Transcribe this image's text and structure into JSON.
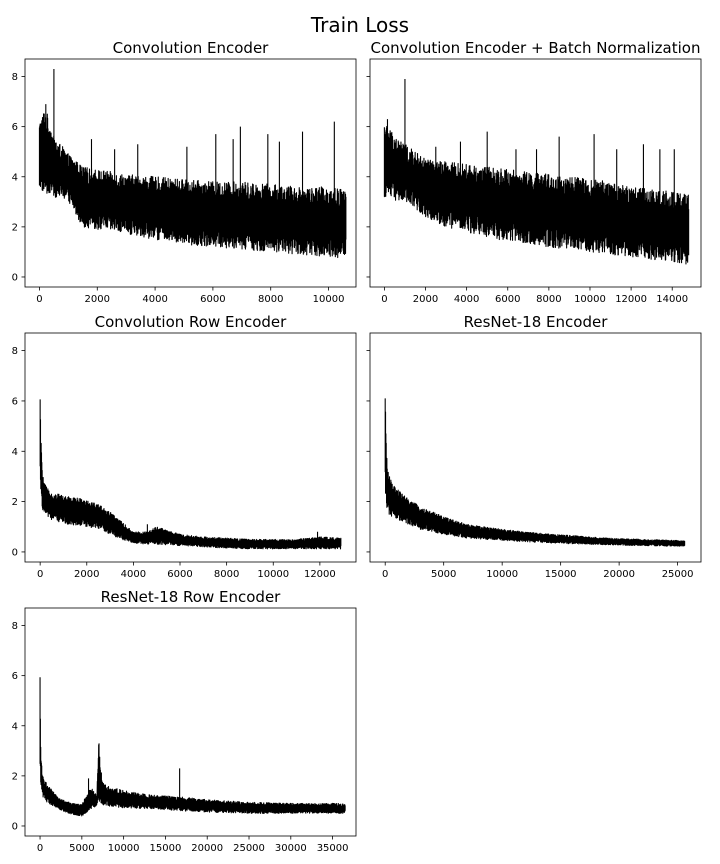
{
  "figure": {
    "title": "Train Loss"
  },
  "chart_data": [
    {
      "type": "line",
      "title": "Convolution Encoder",
      "xlabel": "",
      "ylabel": "",
      "xlim": [
        -500,
        10950
      ],
      "ylim": [
        -0.4,
        8.7
      ],
      "xticks": [
        0,
        2000,
        4000,
        6000,
        8000,
        10000
      ],
      "yticks": [
        0,
        2,
        4,
        6,
        8
      ],
      "show_ytick_labels": true,
      "grid": false,
      "series": [
        {
          "color": "#000000",
          "x": [
            0,
            200,
            500,
            800,
            1000,
            1200,
            1500,
            2000,
            2500,
            3000,
            4000,
            5000,
            6000,
            7000,
            8000,
            9000,
            10000,
            10600
          ],
          "upper": [
            6.2,
            6.8,
            5.6,
            5.2,
            4.9,
            4.7,
            4.4,
            4.3,
            4.2,
            4.1,
            4.0,
            3.9,
            3.8,
            3.8,
            3.7,
            3.6,
            3.6,
            3.5
          ],
          "lower": [
            3.5,
            3.3,
            3.2,
            3.1,
            3.0,
            2.6,
            2.0,
            1.9,
            1.8,
            1.7,
            1.5,
            1.3,
            1.2,
            1.1,
            1.0,
            0.9,
            0.8,
            0.7
          ],
          "spikes": [
            [
              220,
              6.9
            ],
            [
              500,
              8.3
            ],
            [
              1800,
              5.5
            ],
            [
              2600,
              5.1
            ],
            [
              3400,
              5.3
            ],
            [
              5100,
              5.2
            ],
            [
              6100,
              5.7
            ],
            [
              6700,
              5.5
            ],
            [
              6950,
              6.0
            ],
            [
              7900,
              5.7
            ],
            [
              8300,
              5.4
            ],
            [
              9100,
              5.8
            ],
            [
              10200,
              6.2
            ]
          ]
        }
      ]
    },
    {
      "type": "line",
      "title": "Convolution Encoder + Batch Normalization",
      "xlabel": "",
      "ylabel": "",
      "xlim": [
        -700,
        15400
      ],
      "ylim": [
        -0.4,
        8.7
      ],
      "xticks": [
        0,
        2000,
        4000,
        6000,
        8000,
        10000,
        12000,
        14000
      ],
      "yticks": [
        0,
        2,
        4,
        6,
        8
      ],
      "show_ytick_labels": false,
      "grid": false,
      "series": [
        {
          "color": "#000000",
          "x": [
            0,
            300,
            700,
            1000,
            1500,
            2000,
            3000,
            4000,
            5000,
            6000,
            7000,
            8000,
            9000,
            10000,
            11000,
            12000,
            13000,
            14000,
            14800
          ],
          "upper": [
            6.2,
            5.9,
            5.5,
            5.3,
            5.0,
            4.7,
            4.6,
            4.5,
            4.4,
            4.3,
            4.2,
            4.1,
            4.0,
            3.9,
            3.8,
            3.6,
            3.5,
            3.4,
            3.3
          ],
          "lower": [
            3.2,
            3.1,
            3.0,
            2.9,
            2.7,
            2.4,
            2.0,
            1.8,
            1.6,
            1.4,
            1.3,
            1.2,
            1.1,
            1.0,
            0.9,
            0.8,
            0.7,
            0.6,
            0.5
          ],
          "spikes": [
            [
              150,
              6.3
            ],
            [
              1000,
              7.9
            ],
            [
              2500,
              5.2
            ],
            [
              3700,
              5.4
            ],
            [
              5000,
              5.8
            ],
            [
              6400,
              5.1
            ],
            [
              7400,
              5.1
            ],
            [
              8500,
              5.6
            ],
            [
              10200,
              5.7
            ],
            [
              11300,
              5.1
            ],
            [
              12600,
              5.3
            ],
            [
              13400,
              5.1
            ],
            [
              14100,
              5.1
            ]
          ]
        }
      ]
    },
    {
      "type": "line",
      "title": "Convolution Row Encoder",
      "xlabel": "",
      "ylabel": "",
      "xlim": [
        -650,
        13550
      ],
      "ylim": [
        -0.4,
        8.7
      ],
      "xticks": [
        0,
        2000,
        4000,
        6000,
        8000,
        10000,
        12000
      ],
      "yticks": [
        0,
        2,
        4,
        6,
        8
      ],
      "show_ytick_labels": true,
      "grid": false,
      "series": [
        {
          "color": "#000000",
          "x": [
            0,
            50,
            100,
            200,
            400,
            800,
            1200,
            2000,
            2500,
            3000,
            3500,
            4000,
            4500,
            5000,
            6000,
            7000,
            8000,
            9000,
            10000,
            11000,
            12000,
            12900
          ],
          "upper": [
            6.3,
            4.1,
            3.2,
            2.7,
            2.4,
            2.3,
            2.2,
            2.1,
            1.9,
            1.6,
            1.2,
            0.8,
            0.8,
            1.0,
            0.7,
            0.6,
            0.55,
            0.5,
            0.5,
            0.5,
            0.6,
            0.55
          ],
          "lower": [
            2.5,
            2.0,
            1.7,
            1.5,
            1.3,
            1.2,
            1.1,
            1.0,
            0.9,
            0.7,
            0.5,
            0.35,
            0.3,
            0.3,
            0.25,
            0.2,
            0.15,
            0.12,
            0.12,
            0.12,
            0.12,
            0.12
          ],
          "spikes": [
            [
              4600,
              1.1
            ],
            [
              11900,
              0.8
            ]
          ]
        }
      ]
    },
    {
      "type": "line",
      "title": "ResNet-18 Encoder",
      "xlabel": "",
      "ylabel": "",
      "xlim": [
        -1300,
        27000
      ],
      "ylim": [
        -0.4,
        8.7
      ],
      "xticks": [
        0,
        5000,
        10000,
        15000,
        20000,
        25000
      ],
      "yticks": [
        0,
        2,
        4,
        6,
        8
      ],
      "show_ytick_labels": false,
      "grid": false,
      "series": [
        {
          "color": "#000000",
          "x": [
            0,
            50,
            150,
            300,
            600,
            1000,
            2000,
            3000,
            4000,
            5000,
            7000,
            10000,
            13000,
            16000,
            19000,
            22000,
            25600
          ],
          "upper": [
            6.3,
            5.0,
            3.8,
            3.1,
            2.7,
            2.5,
            2.1,
            1.8,
            1.6,
            1.4,
            1.1,
            0.9,
            0.75,
            0.65,
            0.55,
            0.5,
            0.45
          ],
          "lower": [
            2.5,
            2.0,
            1.7,
            1.5,
            1.4,
            1.3,
            1.1,
            0.9,
            0.8,
            0.7,
            0.55,
            0.45,
            0.38,
            0.32,
            0.28,
            0.25,
            0.22
          ],
          "spikes": []
        }
      ]
    },
    {
      "type": "line",
      "title": "ResNet-18 Row Encoder",
      "xlabel": "",
      "ylabel": "",
      "xlim": [
        -1800,
        37800
      ],
      "ylim": [
        -0.4,
        8.7
      ],
      "xticks": [
        0,
        5000,
        10000,
        15000,
        20000,
        25000,
        30000,
        35000
      ],
      "yticks": [
        0,
        2,
        4,
        6,
        8
      ],
      "show_ytick_labels": true,
      "grid": false,
      "series": [
        {
          "color": "#000000",
          "x": [
            0,
            100,
            300,
            600,
            1000,
            2000,
            3000,
            4000,
            5000,
            5800,
            6200,
            6800,
            7000,
            7400,
            8000,
            9000,
            11000,
            13000,
            15000,
            17000,
            20000,
            25000,
            30000,
            36500
          ],
          "upper": [
            6.1,
            2.9,
            2.1,
            1.8,
            1.6,
            1.2,
            1.0,
            0.9,
            0.85,
            1.4,
            1.5,
            1.2,
            3.6,
            1.9,
            1.6,
            1.5,
            1.35,
            1.25,
            1.2,
            1.15,
            1.05,
            0.95,
            0.9,
            0.9
          ],
          "lower": [
            2.0,
            1.4,
            1.2,
            1.0,
            0.9,
            0.7,
            0.55,
            0.45,
            0.4,
            0.6,
            0.7,
            0.8,
            1.0,
            0.85,
            0.8,
            0.75,
            0.7,
            0.7,
            0.65,
            0.6,
            0.55,
            0.5,
            0.5,
            0.5
          ],
          "spikes": [
            [
              5800,
              1.9
            ],
            [
              16700,
              2.3
            ]
          ]
        }
      ]
    }
  ]
}
